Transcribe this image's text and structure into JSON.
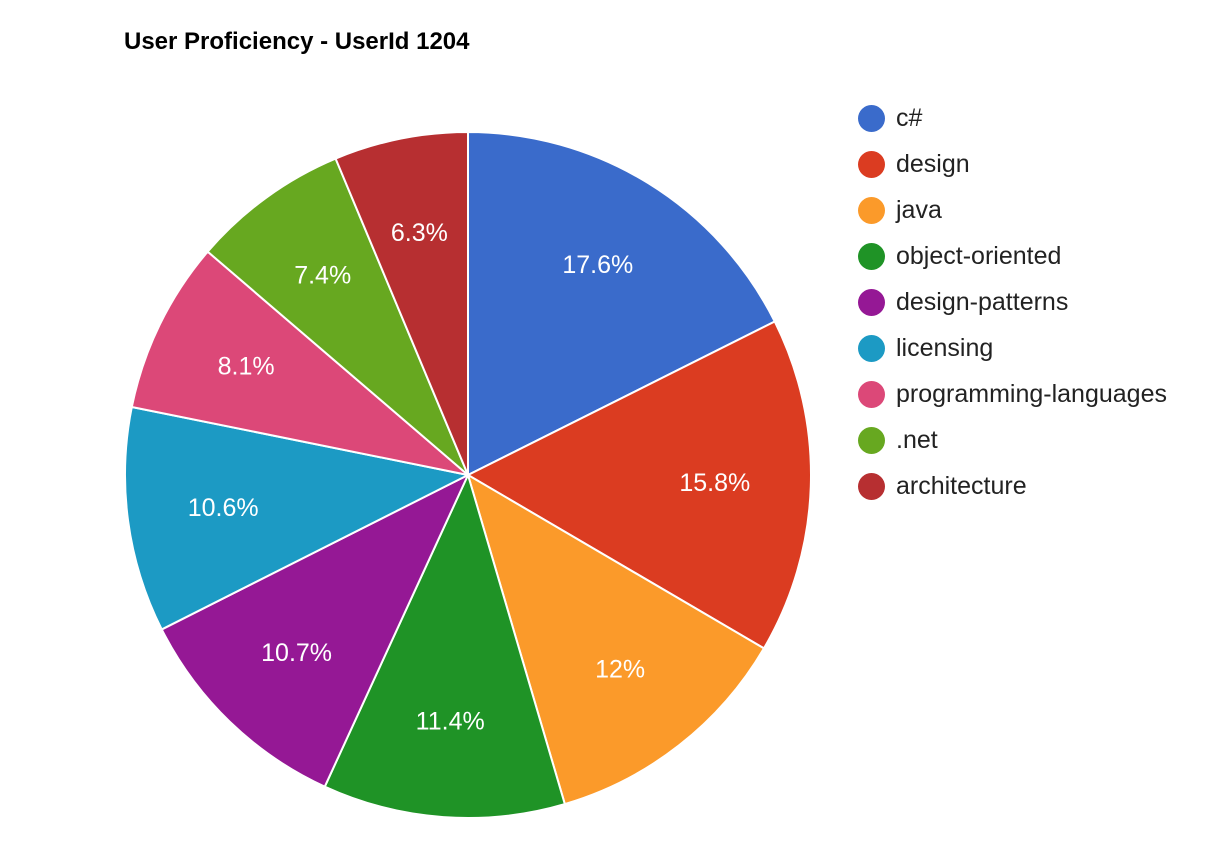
{
  "chart_data": {
    "type": "pie",
    "title": "User Proficiency - UserId 1204",
    "legend_position": "right",
    "slices": [
      {
        "name": "c#",
        "value": 17.6,
        "label": "17.6%",
        "color": "#3a6bcb"
      },
      {
        "name": "design",
        "value": 15.8,
        "label": "15.8%",
        "color": "#db3c21"
      },
      {
        "name": "java",
        "value": 12,
        "label": "12%",
        "color": "#fb9a2a"
      },
      {
        "name": "object-oriented",
        "value": 11.4,
        "label": "11.4%",
        "color": "#1f9326"
      },
      {
        "name": "design-patterns",
        "value": 10.7,
        "label": "10.7%",
        "color": "#951895"
      },
      {
        "name": "licensing",
        "value": 10.6,
        "label": "10.6%",
        "color": "#1c9ac4"
      },
      {
        "name": "programming-languages",
        "value": 8.1,
        "label": "8.1%",
        "color": "#dc4878"
      },
      {
        "name": ".net",
        "value": 7.4,
        "label": "7.4%",
        "color": "#67a820"
      },
      {
        "name": "architecture",
        "value": 6.3,
        "label": "6.3%",
        "color": "#b72f31"
      }
    ]
  }
}
